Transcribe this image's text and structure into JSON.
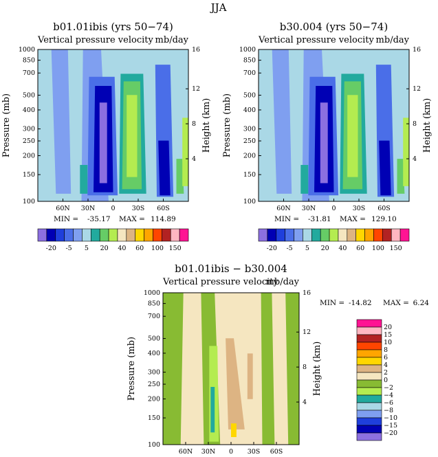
{
  "figure": {
    "title": "JJA"
  },
  "chart_data": [
    {
      "type": "heatmap",
      "title": "b01.01ibis (yrs 50−74)",
      "subtitle_left": "Vertical pressure velocity",
      "subtitle_right": "mb/day",
      "ylabel": "Pressure (mb)",
      "y2label": "Height (km)",
      "x_ticks": [
        "60N",
        "30N",
        "0",
        "30S",
        "60S"
      ],
      "x_tick_values": [
        60,
        30,
        0,
        -30,
        -60
      ],
      "xlim": [
        90,
        -90
      ],
      "y_ticks": [
        100,
        150,
        200,
        250,
        300,
        400,
        500,
        700,
        850,
        1000
      ],
      "ylim": [
        1000,
        100
      ],
      "y_scale": "log",
      "y2_ticks": [
        16,
        12,
        8,
        4
      ],
      "stats": {
        "min_label": "MIN =",
        "min": "-35.17",
        "max_label": "MAX =",
        "max": "114.89"
      },
      "colorbar": {
        "orientation": "horizontal",
        "labels": [
          "-20",
          "-5",
          "5",
          "20",
          "40",
          "60",
          "100",
          "150"
        ],
        "colors": [
          "#8c6fe0",
          "#0000b4",
          "#1f3fdc",
          "#4a6ee8",
          "#7f9ff0",
          "#aad8e6",
          "#22aa9e",
          "#66cc66",
          "#b4ec50",
          "#f5e6c0",
          "#ddb483",
          "#ffd700",
          "#ffa500",
          "#ff4500",
          "#b22222",
          "#ffb6c1",
          "#ff1493"
        ]
      }
    },
    {
      "type": "heatmap",
      "title": "b30.004 (yrs 50−74)",
      "subtitle_left": "Vertical pressure velocity",
      "subtitle_right": "mb/day",
      "ylabel": "Pressure (mb)",
      "y2label": "Height (km)",
      "x_ticks": [
        "60N",
        "30N",
        "0",
        "30S",
        "60S"
      ],
      "x_tick_values": [
        60,
        30,
        0,
        -30,
        -60
      ],
      "xlim": [
        90,
        -90
      ],
      "y_ticks": [
        100,
        150,
        200,
        250,
        300,
        400,
        500,
        700,
        850,
        1000
      ],
      "ylim": [
        1000,
        100
      ],
      "y_scale": "log",
      "y2_ticks": [
        16,
        12,
        8,
        4
      ],
      "stats": {
        "min_label": "MIN =",
        "min": "-31.81",
        "max_label": "MAX =",
        "max": "129.10"
      },
      "colorbar": {
        "orientation": "horizontal",
        "labels": [
          "-20",
          "-5",
          "5",
          "20",
          "40",
          "60",
          "100",
          "150"
        ],
        "colors": [
          "#8c6fe0",
          "#0000b4",
          "#1f3fdc",
          "#4a6ee8",
          "#7f9ff0",
          "#aad8e6",
          "#22aa9e",
          "#66cc66",
          "#b4ec50",
          "#f5e6c0",
          "#ddb483",
          "#ffd700",
          "#ffa500",
          "#ff4500",
          "#b22222",
          "#ffb6c1",
          "#ff1493"
        ]
      }
    },
    {
      "type": "heatmap",
      "title": "b01.01ibis − b30.004",
      "subtitle_left": "Vertical pressure velocity",
      "subtitle_right": "mb/day",
      "ylabel": "Pressure (mb)",
      "y2label": "Height (km)",
      "x_ticks": [
        "60N",
        "30N",
        "0",
        "30S",
        "60S"
      ],
      "x_tick_values": [
        60,
        30,
        0,
        -30,
        -60
      ],
      "xlim": [
        90,
        -90
      ],
      "y_ticks": [
        100,
        150,
        200,
        250,
        300,
        400,
        500,
        700,
        850,
        1000
      ],
      "ylim": [
        1000,
        100
      ],
      "y_scale": "log",
      "y2_ticks": [
        16,
        12,
        8,
        4
      ],
      "stats": {
        "min_label": "MIN =",
        "min": "-14.82",
        "max_label": "MAX =",
        "max": "6.24"
      },
      "colorbar": {
        "orientation": "vertical",
        "labels": [
          "20",
          "15",
          "10",
          "8",
          "6",
          "4",
          "2",
          "0",
          "−2",
          "−4",
          "−6",
          "−8",
          "−10",
          "−15",
          "−20"
        ],
        "colors": [
          "#ff1493",
          "#ffb6c1",
          "#b22222",
          "#ff4500",
          "#ffa500",
          "#ffd700",
          "#ddb483",
          "#f5e6c0",
          "#88bb33",
          "#b4ec50",
          "#22aa9e",
          "#aad8e6",
          "#7f9ff0",
          "#1f3fdc",
          "#0000b4",
          "#8c6fe0"
        ]
      }
    }
  ]
}
